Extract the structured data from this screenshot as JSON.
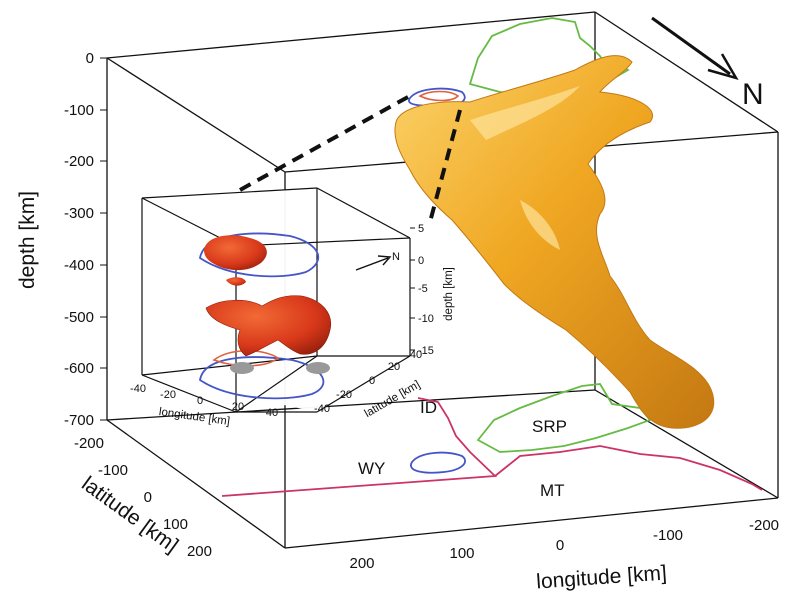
{
  "main": {
    "axes": {
      "depth_label": "depth [km]",
      "depth_ticks": [
        "0",
        "-100",
        "-200",
        "-300",
        "-400",
        "-500",
        "-600",
        "-700"
      ],
      "latitude_label": "latitude [km]",
      "latitude_ticks": [
        "-200",
        "-100",
        "0",
        "100",
        "200"
      ],
      "longitude_label": "longitude [km]",
      "longitude_ticks": [
        "200",
        "100",
        "0",
        "-100",
        "-200"
      ]
    },
    "north_label": "N",
    "states": {
      "idaho": "ID",
      "wyoming": "WY",
      "montana": "MT",
      "snake_river_plain": "SRP"
    }
  },
  "inset": {
    "north_label": "N",
    "depth_label": "depth [km]",
    "depth_ticks": [
      "5",
      "0",
      "-5",
      "-10",
      "-15"
    ],
    "longitude_label": "longitude [km]",
    "longitude_ticks": [
      "-40",
      "-20",
      "0",
      "20",
      "40"
    ],
    "latitude_label": "latitude [km]",
    "latitude_ticks": [
      "-40",
      "-20",
      "0",
      "20",
      "40"
    ]
  },
  "colors": {
    "plume": "#f0a722",
    "plume_dark": "#c97a0e",
    "magma": "#d8381a",
    "caldera": "#4455c8",
    "srp": "#66bb44",
    "border": "#cc3366"
  }
}
